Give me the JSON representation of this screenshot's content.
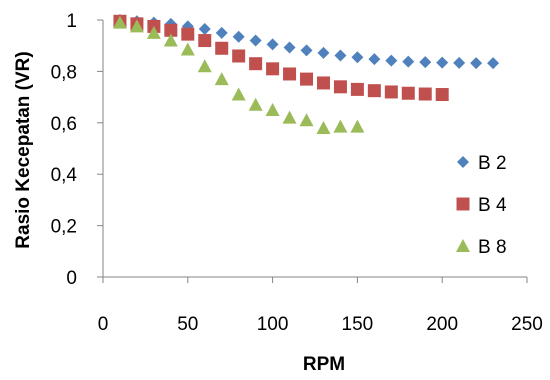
{
  "chart_data": {
    "type": "scatter",
    "xlabel": "RPM",
    "ylabel": "Rasio Kecepatan (VR)",
    "xlim": [
      0,
      250
    ],
    "ylim": [
      0,
      1
    ],
    "x_ticks": [
      "0",
      "50",
      "100",
      "150",
      "200",
      "250"
    ],
    "y_ticks": [
      "0",
      "0,2",
      "0,4",
      "0,6",
      "0,8",
      "1"
    ],
    "grid": false,
    "legend_position": "right",
    "series": [
      {
        "name": "B 2",
        "marker": "diamond",
        "color": "#4f81bd",
        "x": [
          10,
          20,
          30,
          40,
          50,
          60,
          70,
          80,
          90,
          100,
          110,
          120,
          130,
          140,
          150,
          160,
          170,
          180,
          190,
          200,
          210,
          220,
          230
        ],
        "y": [
          1.0,
          0.995,
          0.99,
          0.985,
          0.975,
          0.965,
          0.95,
          0.935,
          0.92,
          0.905,
          0.893,
          0.882,
          0.872,
          0.862,
          0.855,
          0.848,
          0.842,
          0.838,
          0.836,
          0.834,
          0.833,
          0.832,
          0.832
        ]
      },
      {
        "name": "B 4",
        "marker": "square",
        "color": "#c0504d",
        "x": [
          10,
          20,
          30,
          40,
          50,
          60,
          70,
          80,
          90,
          100,
          110,
          120,
          130,
          140,
          150,
          160,
          170,
          180,
          190,
          200
        ],
        "y": [
          0.995,
          0.985,
          0.975,
          0.96,
          0.945,
          0.92,
          0.89,
          0.86,
          0.83,
          0.81,
          0.79,
          0.77,
          0.755,
          0.74,
          0.73,
          0.725,
          0.72,
          0.715,
          0.712,
          0.71
        ]
      },
      {
        "name": "B 8",
        "marker": "triangle",
        "color": "#9bbb59",
        "x": [
          10,
          20,
          30,
          40,
          50,
          60,
          70,
          80,
          90,
          100,
          110,
          120,
          130,
          140,
          150
        ],
        "y": [
          0.99,
          0.975,
          0.95,
          0.92,
          0.885,
          0.82,
          0.77,
          0.71,
          0.67,
          0.65,
          0.62,
          0.61,
          0.58,
          0.585,
          0.585
        ]
      }
    ]
  }
}
